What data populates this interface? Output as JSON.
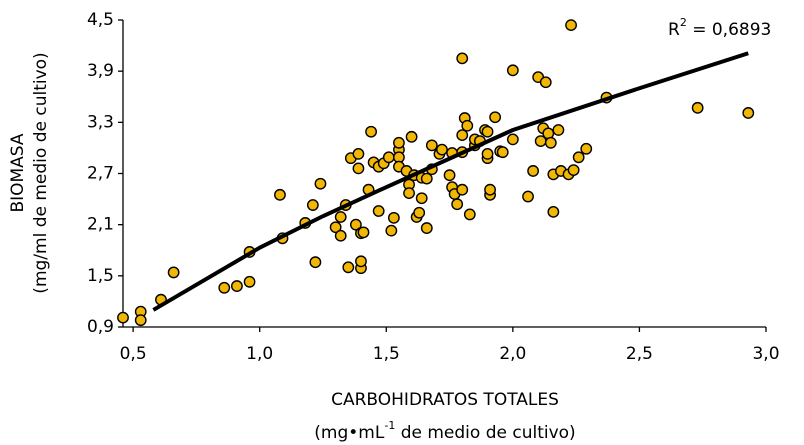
{
  "chart_data": {
    "type": "scatter",
    "x_label": "CARBOHIDRATOS TOTALES",
    "x_label_unit": [
      "(mg•mL",
      "-1",
      " de medio de cultivo)"
    ],
    "y_label": "BIOMASA",
    "y_label_unit": "(mg/ml de medio de cultivo)",
    "annotation": [
      "R",
      "2",
      " = 0,6893"
    ],
    "xlim": [
      0.46,
      3.0
    ],
    "xticks": [
      {
        "value": 0.5,
        "label": "0,5"
      },
      {
        "value": 1.0,
        "label": "1,0"
      },
      {
        "value": 1.5,
        "label": "1,5"
      },
      {
        "value": 2.0,
        "label": "2,0"
      },
      {
        "value": 2.5,
        "label": "2,5"
      },
      {
        "value": 3.0,
        "label": "3,0"
      }
    ],
    "ylim": [
      0.9,
      4.5
    ],
    "yticks": [
      {
        "value": 0.9,
        "label": "0,9"
      },
      {
        "value": 1.5,
        "label": "1,5"
      },
      {
        "value": 2.1,
        "label": "2,1"
      },
      {
        "value": 2.7,
        "label": "2,7"
      },
      {
        "value": 3.3,
        "label": "3,3"
      },
      {
        "value": 3.9,
        "label": "3,9"
      },
      {
        "value": 4.5,
        "label": "4,5"
      }
    ],
    "series": [
      {
        "color": "#f2b705",
        "x": [
          0.46,
          0.53,
          0.53,
          0.61,
          0.66,
          0.86,
          0.91,
          0.96,
          0.96,
          1.08,
          1.09,
          1.18,
          1.21,
          1.22,
          1.24,
          1.3,
          1.32,
          1.32,
          1.34,
          1.35,
          1.38,
          1.36,
          1.39,
          1.39,
          1.4,
          1.4,
          1.4,
          1.41,
          1.43,
          1.44,
          1.45,
          1.47,
          1.47,
          1.49,
          1.51,
          1.52,
          1.53,
          1.55,
          1.55,
          1.55,
          1.55,
          1.58,
          1.59,
          1.59,
          1.6,
          1.61,
          1.62,
          1.63,
          1.64,
          1.64,
          1.66,
          1.66,
          1.68,
          1.68,
          1.71,
          1.72,
          1.75,
          1.76,
          1.76,
          1.77,
          1.78,
          1.8,
          1.8,
          1.8,
          1.8,
          1.81,
          1.82,
          1.83,
          1.85,
          1.85,
          1.87,
          1.89,
          1.9,
          1.9,
          1.9,
          1.91,
          1.91,
          1.93,
          1.95,
          1.96,
          2.0,
          2.0,
          2.06,
          2.08,
          2.1,
          2.11,
          2.12,
          2.13,
          2.14,
          2.15,
          2.16,
          2.16,
          2.18,
          2.19,
          2.22,
          2.23,
          2.24,
          2.26,
          2.29,
          2.37,
          2.73,
          2.93
        ],
        "values": [
          1.01,
          1.08,
          0.98,
          1.22,
          1.54,
          1.36,
          1.38,
          1.43,
          1.78,
          2.45,
          1.94,
          2.12,
          2.33,
          1.66,
          2.58,
          2.07,
          2.19,
          1.97,
          2.33,
          1.6,
          2.1,
          2.88,
          2.76,
          2.93,
          2.0,
          1.59,
          1.67,
          2.01,
          2.51,
          3.19,
          2.83,
          2.78,
          2.26,
          2.82,
          2.89,
          2.03,
          2.18,
          2.98,
          2.89,
          3.06,
          2.78,
          2.73,
          2.57,
          2.47,
          3.13,
          2.68,
          2.19,
          2.24,
          2.65,
          2.41,
          2.64,
          2.06,
          2.75,
          3.03,
          2.93,
          2.98,
          2.68,
          2.54,
          2.94,
          2.46,
          2.34,
          3.15,
          4.05,
          2.51,
          2.95,
          3.35,
          3.26,
          2.22,
          3.03,
          3.1,
          3.08,
          3.21,
          2.88,
          3.19,
          2.93,
          2.45,
          2.51,
          3.36,
          2.96,
          2.95,
          3.91,
          3.1,
          2.43,
          2.73,
          3.83,
          3.08,
          3.23,
          3.77,
          3.17,
          3.06,
          2.25,
          2.69,
          3.21,
          2.73,
          2.69,
          4.44,
          2.74,
          2.89,
          2.99,
          3.59,
          3.47,
          3.41
        ]
      }
    ],
    "trendline": {
      "color": "#000000",
      "x": [
        0.58,
        1.0,
        1.25,
        1.5,
        2.0,
        2.5,
        2.93
      ],
      "y": [
        1.1,
        1.83,
        2.2,
        2.54,
        3.21,
        3.7,
        4.11
      ]
    }
  }
}
